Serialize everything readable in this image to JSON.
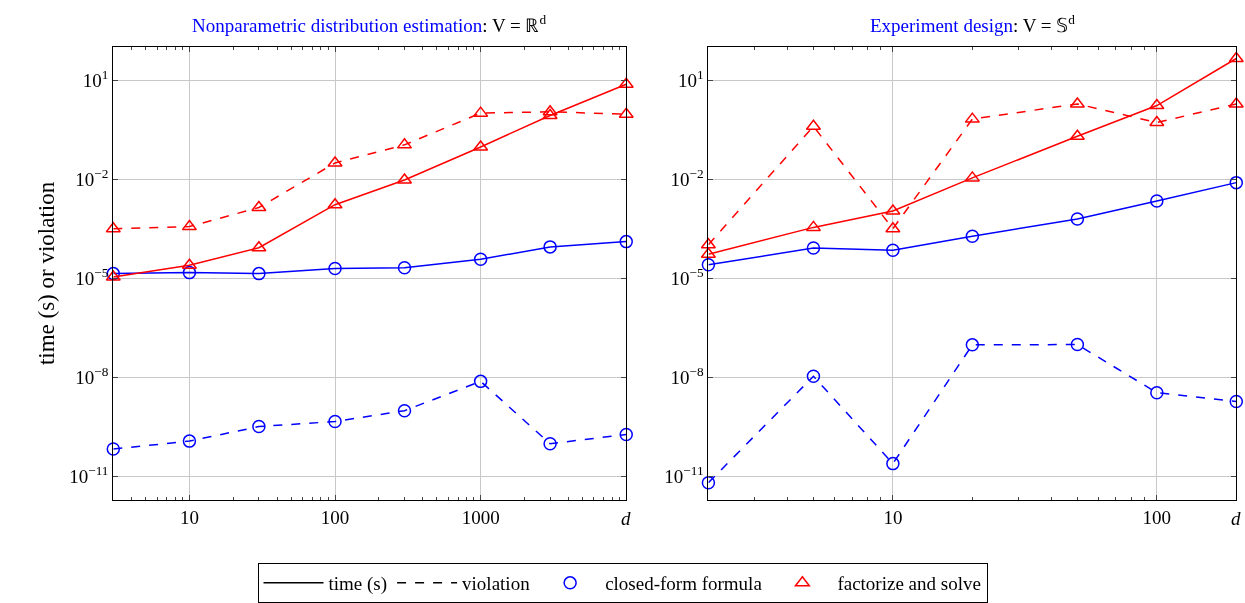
{
  "chart_data": [
    {
      "type": "line",
      "title": "Nonparametric distribution estimation: V = ℝ$^{d}$",
      "xlabel": "d",
      "ylabel": "time (s) or violation",
      "log": "xy",
      "grid": true,
      "legend": "bottom",
      "x": [
        3,
        10,
        30,
        100,
        300,
        1000,
        3000,
        10000
      ],
      "xlim": [
        3,
        10000
      ],
      "xticks": [
        10,
        100,
        1000
      ],
      "ylim": [
        2e-12,
        100
      ],
      "yticks": [
        {
          "value": 10,
          "label": "10$^{1}$"
        },
        {
          "value": 0.01,
          "label": "10$^{−2}$"
        },
        {
          "value": 1e-05,
          "label": "10$^{−5}$"
        },
        {
          "value": 1e-08,
          "label": "10$^{−8}$"
        },
        {
          "value": 1e-11,
          "label": "10$^{−11}$"
        }
      ],
      "series": [
        {
          "color": "#0000ff",
          "line_style": "solid",
          "marker": "circle",
          "values": [
            1.4e-05,
            1.5e-05,
            1.4e-05,
            2e-05,
            2.1e-05,
            3.8e-05,
            9e-05,
            0.00013
          ]
        },
        {
          "color": "#ff0000",
          "line_style": "solid",
          "marker": "triangle",
          "values": [
            1.1e-05,
            2.5e-05,
            8.5e-05,
            0.0017,
            0.0095,
            0.095,
            0.85,
            7.5
          ]
        },
        {
          "color": "#ff0000",
          "line_style": "dashed",
          "marker": "triangle",
          "values": [
            0.00032,
            0.00037,
            0.0014,
            0.031,
            0.11,
            1.0,
            1.1,
            0.93
          ]
        },
        {
          "color": "#0000ff",
          "line_style": "dashed",
          "marker": "circle",
          "values": [
            6.9e-11,
            1.2e-10,
            3.3e-10,
            4.7e-10,
            1e-09,
            7.7e-09,
            1e-10,
            1.9e-10
          ]
        },
        {
          "name": "time (s)",
          "color": "#000000",
          "line_style": "solid",
          "values": [
            null,
            null,
            null,
            null,
            null,
            null,
            null,
            null
          ]
        },
        {
          "name": "violation",
          "color": "#000000",
          "line_style": "dashed",
          "values": [
            null,
            null,
            null,
            null,
            null,
            null,
            null,
            null
          ]
        },
        {
          "type": "scatter",
          "name": "closed-form formula",
          "color": "#0000ff",
          "marker": "circle",
          "values": [
            null,
            null,
            null,
            null,
            null,
            null,
            null,
            null
          ]
        },
        {
          "type": "scatter",
          "name": "factorize and solve",
          "color": "#ff0000",
          "marker": "triangle",
          "values": [
            null,
            null,
            null,
            null,
            null,
            null,
            null,
            null
          ]
        }
      ]
    },
    {
      "type": "line",
      "title": "Experiment design: V = 𝕊$^{d}$",
      "xlabel": "d",
      "log": "xy",
      "grid": true,
      "x": [
        2,
        5,
        10,
        20,
        50,
        100,
        200
      ],
      "xlim": [
        2,
        200
      ],
      "xticks": [
        10,
        100
      ],
      "ylim": [
        2e-12,
        100
      ],
      "yticks": [
        {
          "value": 10,
          "label": "10$^{1}$"
        },
        {
          "value": 0.01,
          "label": "10$^{−2}$"
        },
        {
          "value": 1e-05,
          "label": "10$^{−5}$"
        },
        {
          "value": 1e-08,
          "label": "10$^{−8}$"
        },
        {
          "value": 1e-11,
          "label": "10$^{−11}$"
        }
      ],
      "series": [
        {
          "color": "#0000ff",
          "line_style": "solid",
          "marker": "circle",
          "values": [
            2.6e-05,
            8.3e-05,
            7.1e-05,
            0.00019,
            0.00063,
            0.0022,
            0.0079
          ]
        },
        {
          "color": "#ff0000",
          "line_style": "solid",
          "marker": "triangle",
          "values": [
            5.4e-05,
            0.00035,
            0.0011,
            0.011,
            0.2,
            1.7,
            45
          ]
        },
        {
          "color": "#ff0000",
          "line_style": "dashed",
          "marker": "triangle",
          "values": [
            0.000105,
            0.4,
            0.00032,
            0.66,
            1.9,
            0.52,
            1.9
          ]
        },
        {
          "color": "#0000ff",
          "line_style": "dashed",
          "marker": "circle",
          "values": [
            6.6e-12,
            1.1e-08,
            2.5e-11,
            9.8e-08,
            1e-07,
            3.5e-09,
            1.9e-09
          ]
        }
      ]
    }
  ]
}
